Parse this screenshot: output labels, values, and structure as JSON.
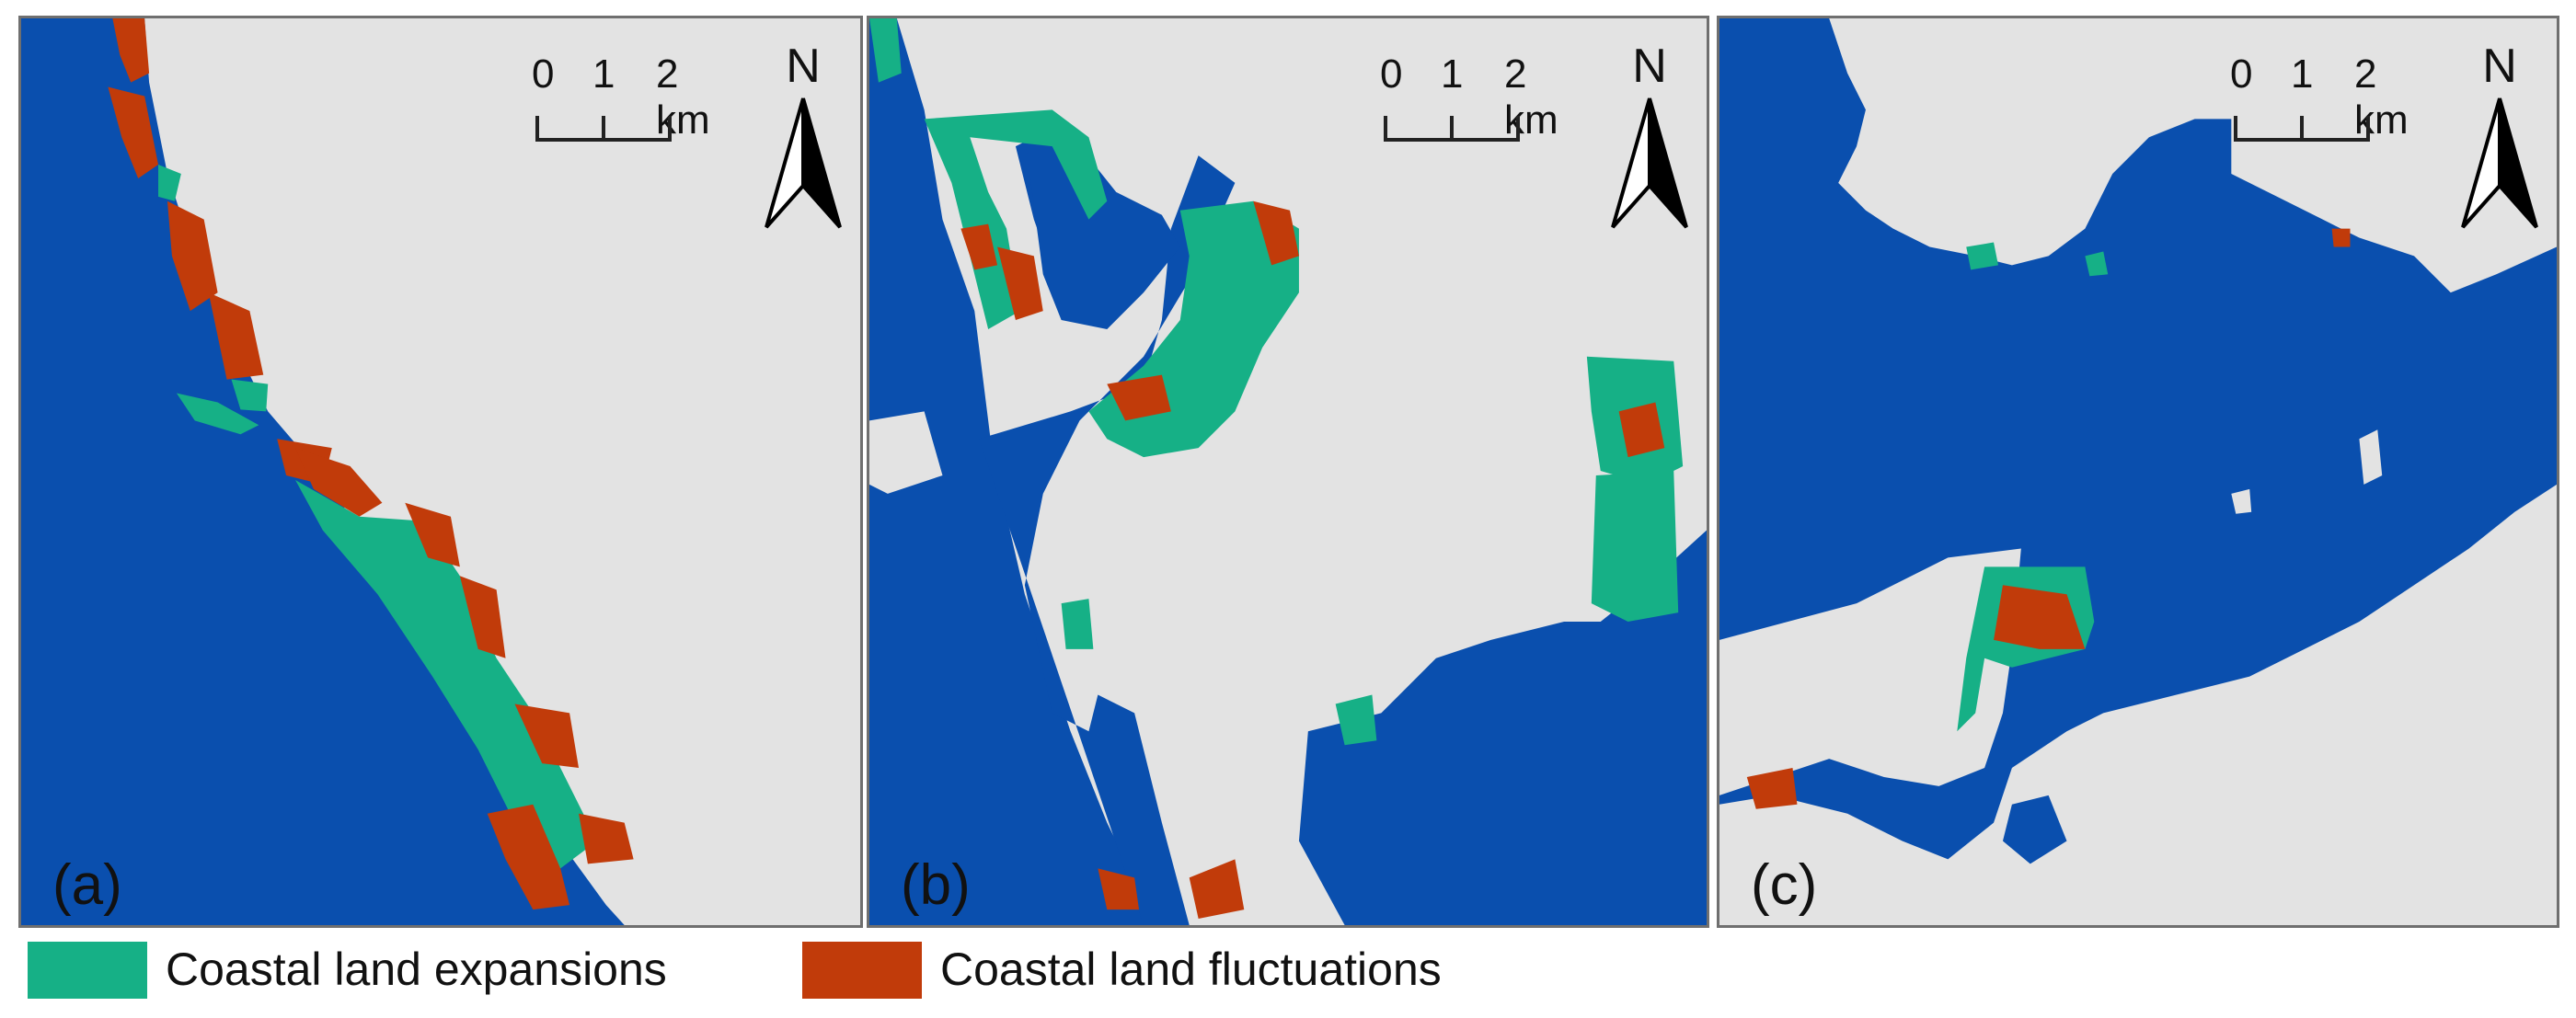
{
  "colors": {
    "water": "#0a4fae",
    "land": "#e3e3e3",
    "expansion": "#16b086",
    "fluctuation": "#c13b0a"
  },
  "scale": {
    "ticks": [
      "0",
      "1",
      "2 km"
    ]
  },
  "north_label": "N",
  "panels": [
    {
      "label": "(a)"
    },
    {
      "label": "(b)"
    },
    {
      "label": "(c)"
    }
  ],
  "legend": {
    "items": [
      {
        "label": "Coastal land expansions",
        "color_key": "expansion"
      },
      {
        "label": "Coastal land fluctuations",
        "color_key": "fluctuation"
      }
    ]
  }
}
